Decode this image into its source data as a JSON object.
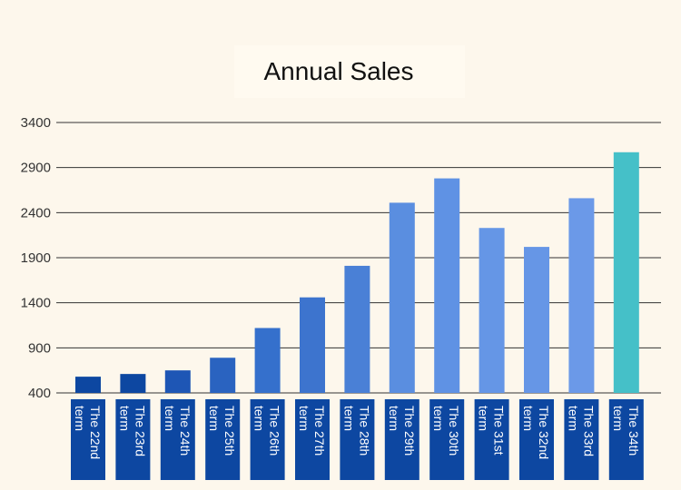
{
  "chart_data": {
    "type": "bar",
    "title": "Annual Sales",
    "xlabel": "",
    "ylabel": "",
    "ylim": [
      400,
      3400
    ],
    "yticks": [
      400,
      900,
      1400,
      1900,
      2400,
      2900,
      3400
    ],
    "grid": true,
    "categories": [
      "The 22nd term",
      "The 23rd term",
      "The 24th term",
      "The 25th term",
      "The 26th term",
      "The 27th term",
      "The 28th term",
      "The 29th term",
      "The 30th term",
      "The 31st term",
      "The 32nd term",
      "The 33rd term",
      "The 34th term"
    ],
    "category_lines": [
      [
        "The 22nd",
        "term"
      ],
      [
        "The 23rd",
        "term"
      ],
      [
        "The 24th",
        "term"
      ],
      [
        "The 25th",
        "term"
      ],
      [
        "The 26th",
        "term"
      ],
      [
        "The 27th",
        "term"
      ],
      [
        "The 28th",
        "term"
      ],
      [
        "The 29th",
        "term"
      ],
      [
        "The 30th",
        "term"
      ],
      [
        "The 31st",
        "term"
      ],
      [
        "The 32nd",
        "term"
      ],
      [
        "The 33rd",
        "term"
      ],
      [
        "The 34th",
        "term"
      ]
    ],
    "values": [
      580,
      610,
      650,
      790,
      1120,
      1460,
      1810,
      2510,
      2780,
      2230,
      2020,
      2560,
      3070
    ],
    "bar_colors": [
      "#0d47a1",
      "#0d47a1",
      "#1e56b5",
      "#2a63c0",
      "#3570cc",
      "#3d74ce",
      "#4a80d6",
      "#5a8ee0",
      "#5f92e4",
      "#6596e6",
      "#6696e6",
      "#6b99e8",
      "#45c0c8"
    ],
    "label_bg": "#0d47a1"
  }
}
